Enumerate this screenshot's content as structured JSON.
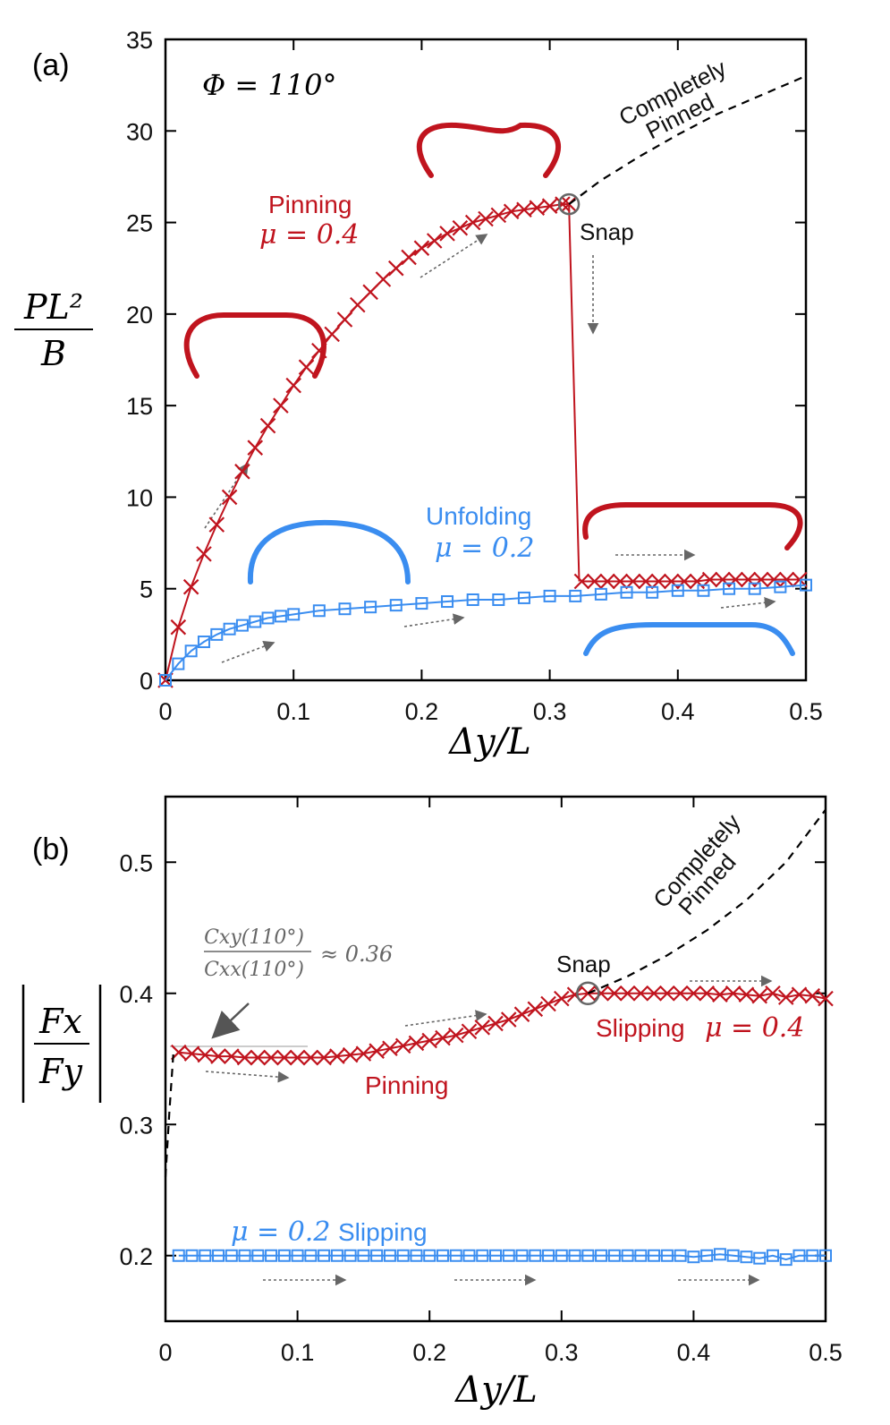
{
  "colors": {
    "red": "#c0141e",
    "blue": "#3a8df0",
    "black": "#000000",
    "gray": "#777777"
  },
  "chart_data": [
    {
      "type": "line",
      "panel_label": "(a)",
      "xlabel": "Δy/L",
      "ylabel_num": "PL²",
      "ylabel_den": "B",
      "xlim": [
        0,
        0.5
      ],
      "ylim": [
        0,
        35
      ],
      "xticks": [
        0,
        0.1,
        0.2,
        0.3,
        0.4,
        0.5
      ],
      "xtick_labels": [
        "0",
        "0.1",
        "0.2",
        "0.3",
        "0.4",
        "0.5"
      ],
      "yticks": [
        0,
        5,
        10,
        15,
        20,
        25,
        30,
        35
      ],
      "ytick_labels": [
        "0",
        "5",
        "10",
        "15",
        "20",
        "25",
        "30",
        "35"
      ],
      "annotations": {
        "phi": "Φ = 110°",
        "completely": "Completely",
        "pinned": "Pinned",
        "snap": "Snap",
        "pinning": "Pinning",
        "pinning_mu": "μ = 0.4",
        "unfolding": "Unfolding",
        "unfolding_mu": "μ = 0.2"
      },
      "series": [
        {
          "name": "Pinning μ = 0.4 (loading)",
          "color": "red",
          "marker": "x",
          "x": [
            0,
            0.01,
            0.02,
            0.03,
            0.04,
            0.05,
            0.06,
            0.07,
            0.08,
            0.09,
            0.1,
            0.11,
            0.12,
            0.13,
            0.14,
            0.15,
            0.16,
            0.17,
            0.18,
            0.19,
            0.2,
            0.21,
            0.22,
            0.23,
            0.24,
            0.25,
            0.26,
            0.27,
            0.28,
            0.29,
            0.3,
            0.31,
            0.315
          ],
          "y": [
            0,
            2.9,
            5.1,
            6.9,
            8.5,
            10.0,
            11.4,
            12.7,
            13.9,
            15.0,
            16.1,
            17.1,
            18.0,
            18.9,
            19.7,
            20.5,
            21.2,
            21.9,
            22.5,
            23.1,
            23.6,
            24.0,
            24.4,
            24.7,
            25.0,
            25.2,
            25.4,
            25.6,
            25.7,
            25.8,
            25.9,
            26.0,
            26.0
          ]
        },
        {
          "name": "Snap drop",
          "color": "red",
          "marker": "none",
          "x": [
            0.315,
            0.323
          ],
          "y": [
            26.0,
            5.4
          ]
        },
        {
          "name": "Slipping after snap μ = 0.4",
          "color": "red",
          "marker": "x",
          "x": [
            0.325,
            0.335,
            0.345,
            0.355,
            0.365,
            0.375,
            0.385,
            0.395,
            0.405,
            0.415,
            0.425,
            0.435,
            0.445,
            0.455,
            0.465,
            0.475,
            0.485,
            0.495
          ],
          "y": [
            5.4,
            5.4,
            5.4,
            5.4,
            5.4,
            5.4,
            5.4,
            5.4,
            5.4,
            5.4,
            5.5,
            5.5,
            5.5,
            5.5,
            5.5,
            5.5,
            5.5,
            5.5
          ]
        },
        {
          "name": "Unfolding μ = 0.2",
          "color": "blue",
          "marker": "square",
          "x": [
            0,
            0.01,
            0.02,
            0.03,
            0.04,
            0.05,
            0.06,
            0.07,
            0.08,
            0.09,
            0.1,
            0.12,
            0.14,
            0.16,
            0.18,
            0.2,
            0.22,
            0.24,
            0.26,
            0.28,
            0.3,
            0.32,
            0.34,
            0.36,
            0.38,
            0.4,
            0.42,
            0.44,
            0.46,
            0.48,
            0.5
          ],
          "y": [
            0,
            0.9,
            1.6,
            2.1,
            2.5,
            2.8,
            3.0,
            3.2,
            3.4,
            3.5,
            3.6,
            3.8,
            3.9,
            4.0,
            4.1,
            4.2,
            4.3,
            4.4,
            4.4,
            4.5,
            4.6,
            4.6,
            4.7,
            4.8,
            4.8,
            4.9,
            4.9,
            5.0,
            5.0,
            5.1,
            5.2
          ]
        },
        {
          "name": "Completely Pinned",
          "color": "black",
          "marker": "dashed",
          "x": [
            0.315,
            0.34,
            0.37,
            0.4,
            0.43,
            0.46,
            0.5
          ],
          "y": [
            26.0,
            27.3,
            28.6,
            29.8,
            30.9,
            31.8,
            33.0
          ]
        }
      ]
    },
    {
      "type": "line",
      "panel_label": "(b)",
      "xlabel": "Δy/L",
      "ylabel_num": "Fx",
      "ylabel_den": "Fy",
      "xlim": [
        0,
        0.5
      ],
      "ylim": [
        0.15,
        0.55
      ],
      "xticks": [
        0,
        0.1,
        0.2,
        0.3,
        0.4,
        0.5
      ],
      "xtick_labels": [
        "0",
        "0.1",
        "0.2",
        "0.3",
        "0.4",
        "0.5"
      ],
      "yticks": [
        0.2,
        0.3,
        0.4,
        0.5
      ],
      "ytick_labels": [
        "0.2",
        "0.3",
        "0.4",
        "0.5"
      ],
      "annotations": {
        "ratio_num": "Cxy(110°)",
        "ratio_den": "Cxx(110°)",
        "ratio_val": "≈ 0.36",
        "completely": "Completely",
        "pinned": "Pinned",
        "snap": "Snap",
        "slipping": "Slipping",
        "slipping_mu": "μ = 0.4",
        "pinning": "Pinning",
        "mu02": "μ = 0.2",
        "slipping02": "Slipping"
      },
      "series": [
        {
          "name": "μ = 0.4",
          "color": "red",
          "marker": "x",
          "x": [
            0.01,
            0.02,
            0.03,
            0.04,
            0.05,
            0.06,
            0.07,
            0.08,
            0.09,
            0.1,
            0.11,
            0.12,
            0.13,
            0.14,
            0.15,
            0.16,
            0.17,
            0.18,
            0.19,
            0.2,
            0.21,
            0.22,
            0.23,
            0.24,
            0.25,
            0.26,
            0.27,
            0.28,
            0.29,
            0.3,
            0.31,
            0.32,
            0.33,
            0.34,
            0.35,
            0.36,
            0.37,
            0.38,
            0.39,
            0.4,
            0.41,
            0.42,
            0.43,
            0.44,
            0.45,
            0.46,
            0.47,
            0.48,
            0.49,
            0.5
          ],
          "y": [
            0.355,
            0.354,
            0.353,
            0.352,
            0.352,
            0.351,
            0.351,
            0.351,
            0.351,
            0.351,
            0.351,
            0.351,
            0.352,
            0.353,
            0.354,
            0.356,
            0.358,
            0.36,
            0.362,
            0.364,
            0.366,
            0.368,
            0.371,
            0.374,
            0.377,
            0.38,
            0.384,
            0.388,
            0.392,
            0.396,
            0.399,
            0.4,
            0.4,
            0.4,
            0.4,
            0.4,
            0.4,
            0.4,
            0.4,
            0.4,
            0.4,
            0.399,
            0.4,
            0.399,
            0.398,
            0.4,
            0.397,
            0.399,
            0.398,
            0.396
          ]
        },
        {
          "name": "μ = 0.2 Slipping",
          "color": "blue",
          "marker": "square",
          "x": [
            0.01,
            0.02,
            0.03,
            0.04,
            0.05,
            0.06,
            0.07,
            0.08,
            0.09,
            0.1,
            0.11,
            0.12,
            0.13,
            0.14,
            0.15,
            0.16,
            0.17,
            0.18,
            0.19,
            0.2,
            0.21,
            0.22,
            0.23,
            0.24,
            0.25,
            0.26,
            0.27,
            0.28,
            0.29,
            0.3,
            0.31,
            0.32,
            0.33,
            0.34,
            0.35,
            0.36,
            0.37,
            0.38,
            0.39,
            0.4,
            0.41,
            0.42,
            0.43,
            0.44,
            0.45,
            0.46,
            0.47,
            0.48,
            0.49,
            0.5
          ],
          "y": [
            0.2,
            0.2,
            0.2,
            0.2,
            0.2,
            0.2,
            0.2,
            0.2,
            0.2,
            0.2,
            0.2,
            0.2,
            0.2,
            0.2,
            0.2,
            0.2,
            0.2,
            0.2,
            0.2,
            0.2,
            0.2,
            0.2,
            0.2,
            0.2,
            0.2,
            0.2,
            0.2,
            0.2,
            0.2,
            0.2,
            0.2,
            0.2,
            0.2,
            0.2,
            0.2,
            0.2,
            0.2,
            0.2,
            0.2,
            0.199,
            0.2,
            0.201,
            0.2,
            0.199,
            0.198,
            0.2,
            0.197,
            0.2,
            0.2,
            0.2
          ]
        },
        {
          "name": "Completely Pinned (initial)",
          "color": "black",
          "marker": "dashed",
          "x": [
            0.0,
            0.003,
            0.006
          ],
          "y": [
            0.26,
            0.31,
            0.355
          ]
        },
        {
          "name": "Completely Pinned",
          "color": "black",
          "marker": "dashed",
          "x": [
            0.32,
            0.35,
            0.38,
            0.41,
            0.44,
            0.47,
            0.5
          ],
          "y": [
            0.4,
            0.413,
            0.429,
            0.448,
            0.471,
            0.5,
            0.54
          ]
        }
      ]
    }
  ]
}
